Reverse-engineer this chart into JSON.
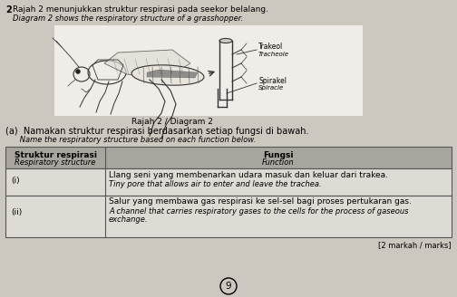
{
  "bg_color": "#ccc8c0",
  "title_number": "2",
  "title_malay": "Rajah 2 menunjukkan struktur respirasi pada seekor belalang.",
  "title_english": "Diagram 2 shows the respiratory structure of a grasshopper.",
  "diagram_caption": "Rajah 2 / Diagram 2",
  "label1_malay": "Trakeol",
  "label1_english": "Tracheole",
  "label2_malay": "Spirakel",
  "label2_english": "Spiracle",
  "question_a_malay": "(a)  Namakan struktur respirasi berdasarkan setiap fungsi di bawah.",
  "question_a_english": "      Name the respiratory structure based on each function below.",
  "table_header_col1_malay": "Struktur respirasi",
  "table_header_col1_english": "Respiratory structure",
  "table_header_col2_malay": "Fungsi",
  "table_header_col2_english": "Function",
  "table_row1_col1": "(i)",
  "table_row1_col2_malay": "Llang seni yang membenarkan udara masuk dan keluar dari trakea.",
  "table_row1_col2_english": "Tiny pore that allows air to enter and leave the trachea.",
  "table_row2_col1": "(ii)",
  "table_row2_col2_malay": "Salur yang membawa gas respirasi ke sel-sel bagi proses pertukaran gas.",
  "table_row2_col2_english_line1": "A channel that carries respiratory gases to the cells for the process of gaseous",
  "table_row2_col2_english_line2": "exchange.",
  "marks_text": "[2 markah / marks]",
  "page_number": "9",
  "table_header_bg": "#a8a49e",
  "table_row_bg": "#dedad4",
  "table_border": "#555555",
  "white_area": "#f0ede8"
}
